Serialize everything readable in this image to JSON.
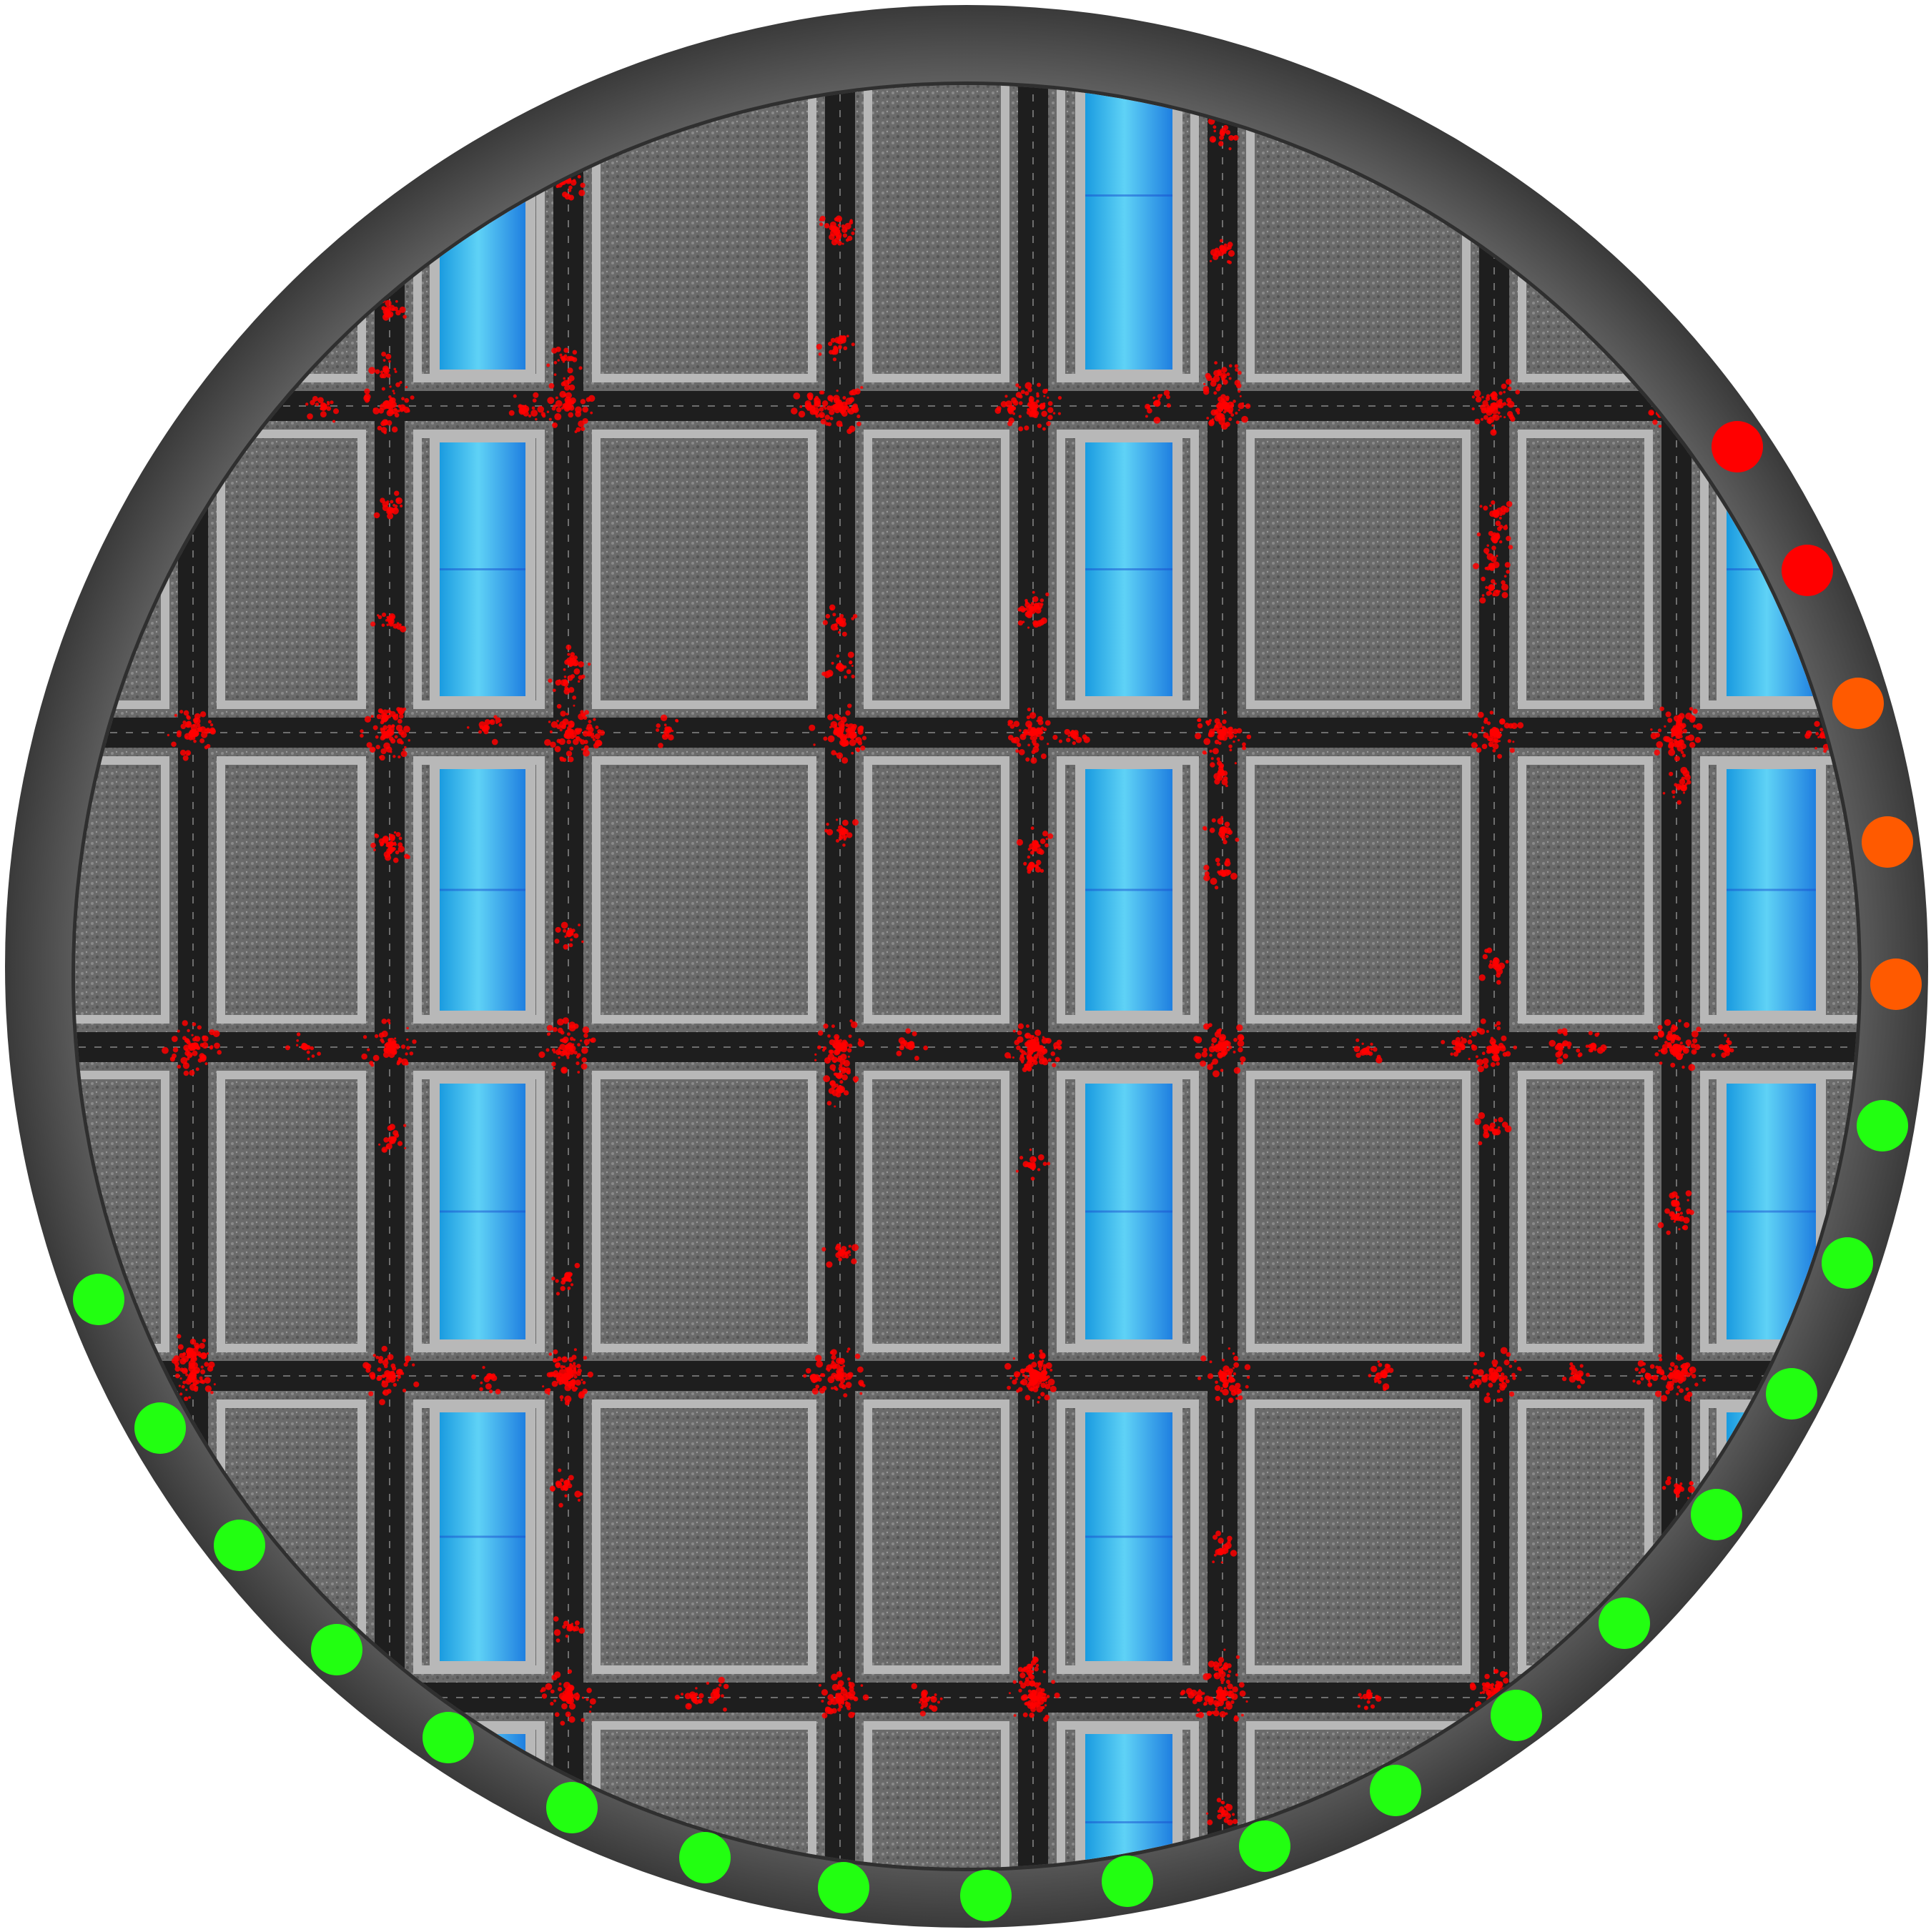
{
  "colors": {
    "background": "#ffffff",
    "rim": "#5a5a5a",
    "rim_shadow": "#3c3c3c",
    "ground": "#8c8c8c",
    "block_fill": "#6f6f6f",
    "block_border": "#b8b8b8",
    "road": "#1e1e1e",
    "lane_mark": "#6e6e6e",
    "water": "#2fb4e6",
    "water_light": "#6fd6f7",
    "water_edge": "#1a4fd0",
    "activity": "#ff0000",
    "status_ok": "#22ff11",
    "status_warn": "#ff5a00",
    "status_alert": "#ff0000"
  },
  "map": {
    "type": "circular top-down city grid",
    "has_water_strips": true,
    "has_activity_overlay": true,
    "activity_color": "red"
  },
  "status_indicators": [
    "alert",
    "alert",
    "warn",
    "warn",
    "warn",
    "ok",
    "ok",
    "ok",
    "ok",
    "ok",
    "ok",
    "ok",
    "ok",
    "ok",
    "ok",
    "ok",
    "ok",
    "ok",
    "ok",
    "ok",
    "ok",
    "ok",
    "ok"
  ],
  "status_counts": {
    "ok": 18,
    "warn": 3,
    "alert": 2
  }
}
